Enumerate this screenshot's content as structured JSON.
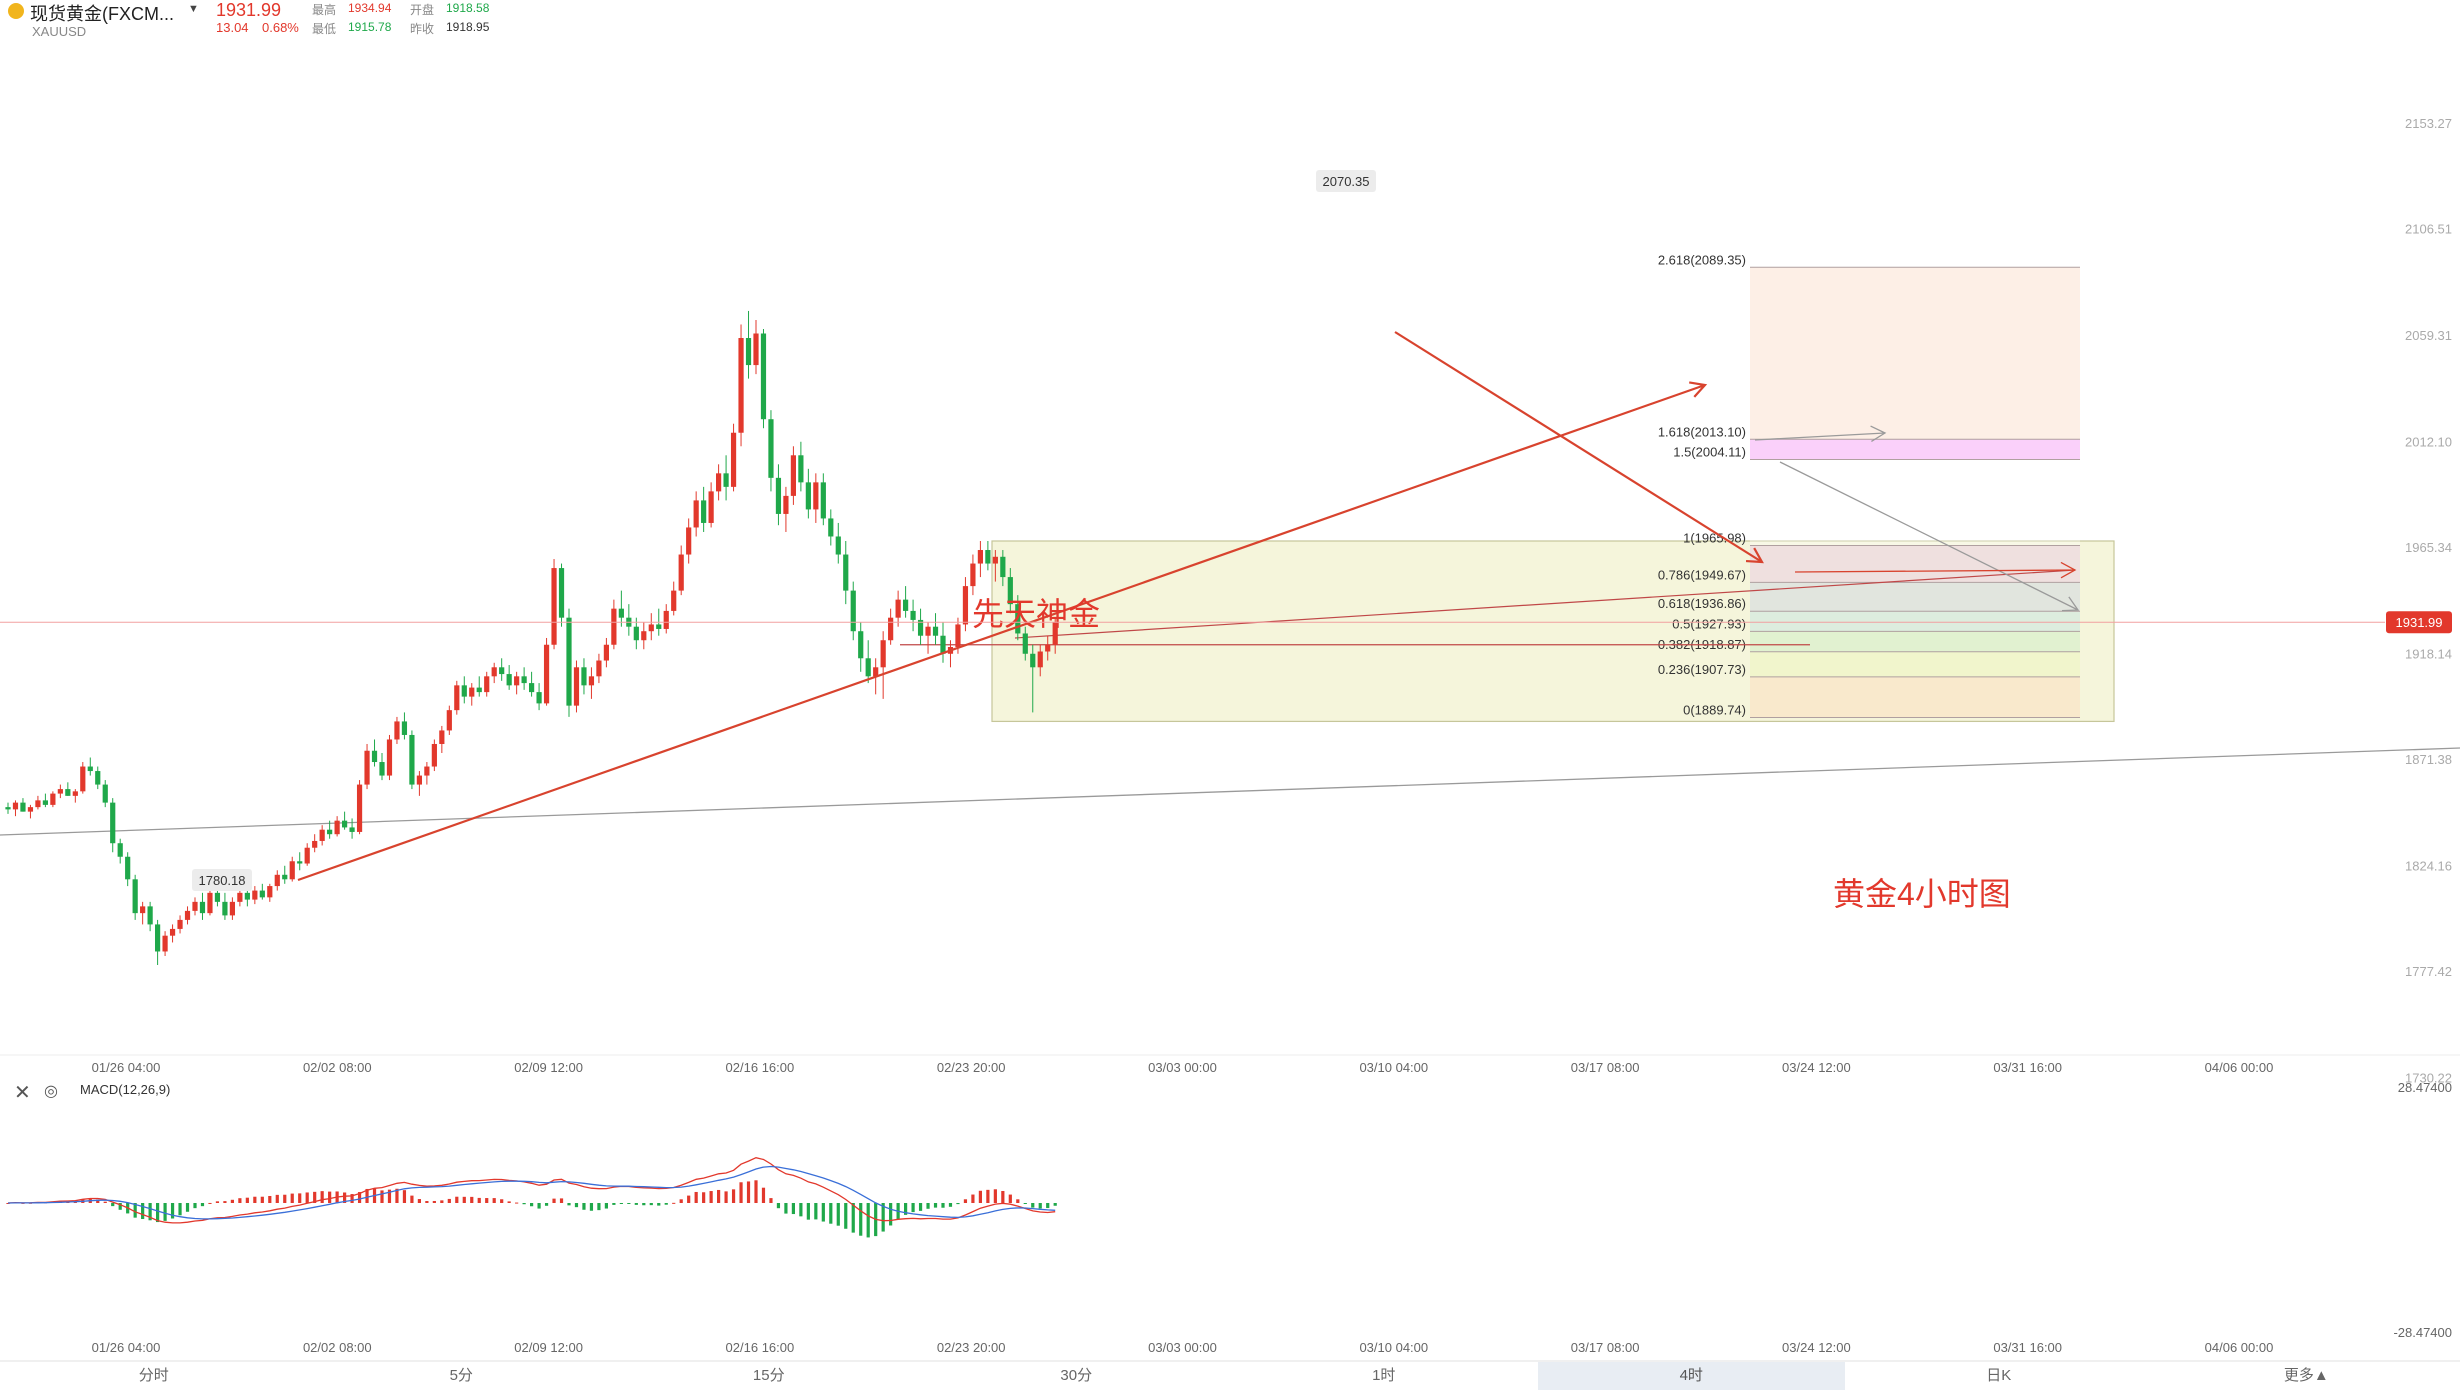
{
  "header": {
    "symbol_name": "现货黄金(FXCM...",
    "symbol_code": "XAUUSD",
    "last_price": "1931.99",
    "change": "13.04",
    "change_pct": "0.68%",
    "high_label": "最高",
    "high_value": "1934.94",
    "low_label": "最低",
    "low_value": "1915.78",
    "open_label": "开盘",
    "open_value": "1918.58",
    "prev_close_label": "昨收",
    "prev_close_value": "1918.95",
    "colors": {
      "up": "#e2382c",
      "down": "#1fa84a"
    }
  },
  "toolbar": {
    "tabs": [
      "分时",
      "5分",
      "15分",
      "30分",
      "1时",
      "4时",
      "日K",
      "更多▲"
    ],
    "active": "4时"
  },
  "indicator": {
    "label": "MACD(12,26,9)",
    "max_label": "28.47400",
    "min_label": "-28.47400"
  },
  "chart_data": {
    "type": "candlestick",
    "symbol": "XAUUSD",
    "timeframe": "4H",
    "y_axis_ticks": [
      2153.27,
      2106.51,
      2059.31,
      2012.1,
      1965.34,
      1918.14,
      1871.38,
      1824.16,
      1777.42,
      1730.22
    ],
    "y_axis_labels": [
      "2153.27",
      "2106.51",
      "2059.31",
      "2012.10",
      "1965.34",
      "1918.14",
      "1871.38",
      "1824.16",
      "1777.42",
      "1730.22"
    ],
    "x_axis_labels": [
      "01/26 04:00",
      "02/02 08:00",
      "02/09 12:00",
      "02/16 16:00",
      "02/23 20:00",
      "03/03 00:00",
      "03/10 04:00",
      "03/17 08:00",
      "03/24 12:00",
      "03/31 16:00",
      "04/06 00:00"
    ],
    "last_price": 1931.99,
    "swing_high": {
      "label": "2070.35",
      "value": 2070.35
    },
    "swing_low": {
      "label": "1780.18",
      "value": 1780.18
    },
    "fibonacci": [
      {
        "label": "2.618(2089.35)",
        "value": 2089.35
      },
      {
        "label": "1.618(2013.10)",
        "value": 2013.1
      },
      {
        "label": "1.5(2004.11)",
        "value": 2004.11
      },
      {
        "label": "1(1965.98)",
        "value": 1965.98
      },
      {
        "label": "0.786(1949.67)",
        "value": 1949.67
      },
      {
        "label": "0.618(1936.86)",
        "value": 1936.86
      },
      {
        "label": "0.5(1927.93)",
        "value": 1927.93
      },
      {
        "label": "0.382(1918.87)",
        "value": 1918.87
      },
      {
        "label": "0.236(1907.73)",
        "value": 1907.73
      },
      {
        "label": "0(1889.74)",
        "value": 1889.74
      }
    ],
    "annotations": [
      "先天神金",
      "黄金4小时图"
    ],
    "candles_ohlc": [
      [
        1850,
        1852,
        1847,
        1849
      ],
      [
        1849,
        1853,
        1846,
        1852
      ],
      [
        1852,
        1854,
        1848,
        1848
      ],
      [
        1848,
        1851,
        1845,
        1850
      ],
      [
        1850,
        1855,
        1849,
        1853
      ],
      [
        1853,
        1856,
        1850,
        1851
      ],
      [
        1851,
        1857,
        1850,
        1856
      ],
      [
        1856,
        1860,
        1854,
        1858
      ],
      [
        1858,
        1861,
        1855,
        1855
      ],
      [
        1855,
        1858,
        1852,
        1857
      ],
      [
        1857,
        1870,
        1856,
        1868
      ],
      [
        1868,
        1872,
        1864,
        1866
      ],
      [
        1866,
        1868,
        1858,
        1860
      ],
      [
        1860,
        1862,
        1850,
        1852
      ],
      [
        1852,
        1854,
        1830,
        1834
      ],
      [
        1834,
        1836,
        1825,
        1828
      ],
      [
        1828,
        1830,
        1815,
        1818
      ],
      [
        1818,
        1820,
        1800,
        1803
      ],
      [
        1803,
        1808,
        1798,
        1806
      ],
      [
        1806,
        1808,
        1795,
        1798
      ],
      [
        1798,
        1800,
        1780,
        1786
      ],
      [
        1786,
        1795,
        1784,
        1793
      ],
      [
        1793,
        1798,
        1790,
        1796
      ],
      [
        1796,
        1802,
        1794,
        1800
      ],
      [
        1800,
        1806,
        1798,
        1804
      ],
      [
        1804,
        1810,
        1802,
        1808
      ],
      [
        1808,
        1812,
        1800,
        1803
      ],
      [
        1803,
        1813,
        1802,
        1812
      ],
      [
        1812,
        1816,
        1806,
        1808
      ],
      [
        1808,
        1812,
        1800,
        1802
      ],
      [
        1802,
        1810,
        1800,
        1808
      ],
      [
        1808,
        1814,
        1806,
        1812
      ],
      [
        1812,
        1814,
        1806,
        1809
      ],
      [
        1809,
        1815,
        1807,
        1813
      ],
      [
        1813,
        1816,
        1809,
        1810
      ],
      [
        1810,
        1816,
        1808,
        1815
      ],
      [
        1815,
        1822,
        1813,
        1820
      ],
      [
        1820,
        1824,
        1816,
        1818
      ],
      [
        1818,
        1828,
        1817,
        1826
      ],
      [
        1826,
        1830,
        1822,
        1825
      ],
      [
        1825,
        1834,
        1824,
        1832
      ],
      [
        1832,
        1838,
        1830,
        1835
      ],
      [
        1835,
        1842,
        1833,
        1840
      ],
      [
        1840,
        1844,
        1836,
        1838
      ],
      [
        1838,
        1846,
        1837,
        1844
      ],
      [
        1844,
        1848,
        1840,
        1841
      ],
      [
        1841,
        1845,
        1836,
        1839
      ],
      [
        1839,
        1862,
        1838,
        1860
      ],
      [
        1860,
        1878,
        1858,
        1875
      ],
      [
        1875,
        1880,
        1868,
        1870
      ],
      [
        1870,
        1874,
        1862,
        1864
      ],
      [
        1864,
        1882,
        1862,
        1880
      ],
      [
        1880,
        1890,
        1878,
        1888
      ],
      [
        1888,
        1892,
        1880,
        1882
      ],
      [
        1882,
        1884,
        1858,
        1860
      ],
      [
        1860,
        1866,
        1855,
        1864
      ],
      [
        1864,
        1870,
        1860,
        1868
      ],
      [
        1868,
        1880,
        1866,
        1878
      ],
      [
        1878,
        1886,
        1874,
        1884
      ],
      [
        1884,
        1895,
        1882,
        1893
      ],
      [
        1893,
        1906,
        1891,
        1904
      ],
      [
        1904,
        1908,
        1896,
        1899
      ],
      [
        1899,
        1905,
        1895,
        1903
      ],
      [
        1903,
        1908,
        1899,
        1901
      ],
      [
        1901,
        1910,
        1899,
        1908
      ],
      [
        1908,
        1914,
        1905,
        1912
      ],
      [
        1912,
        1916,
        1906,
        1909
      ],
      [
        1909,
        1913,
        1902,
        1904
      ],
      [
        1904,
        1910,
        1900,
        1908
      ],
      [
        1908,
        1912,
        1902,
        1905
      ],
      [
        1905,
        1910,
        1899,
        1901
      ],
      [
        1901,
        1905,
        1893,
        1896
      ],
      [
        1896,
        1925,
        1895,
        1922
      ],
      [
        1922,
        1960,
        1920,
        1956
      ],
      [
        1956,
        1958,
        1930,
        1934
      ],
      [
        1934,
        1938,
        1890,
        1895
      ],
      [
        1895,
        1915,
        1892,
        1912
      ],
      [
        1912,
        1916,
        1900,
        1904
      ],
      [
        1904,
        1912,
        1898,
        1908
      ],
      [
        1908,
        1918,
        1905,
        1915
      ],
      [
        1915,
        1925,
        1912,
        1922
      ],
      [
        1922,
        1942,
        1920,
        1938
      ],
      [
        1938,
        1946,
        1930,
        1934
      ],
      [
        1934,
        1940,
        1926,
        1930
      ],
      [
        1930,
        1934,
        1920,
        1924
      ],
      [
        1924,
        1932,
        1920,
        1928
      ],
      [
        1928,
        1936,
        1924,
        1931
      ],
      [
        1931,
        1938,
        1926,
        1929
      ],
      [
        1929,
        1940,
        1927,
        1937
      ],
      [
        1937,
        1950,
        1935,
        1946
      ],
      [
        1946,
        1966,
        1944,
        1962
      ],
      [
        1962,
        1978,
        1958,
        1974
      ],
      [
        1974,
        1990,
        1970,
        1986
      ],
      [
        1986,
        1992,
        1972,
        1976
      ],
      [
        1976,
        1994,
        1974,
        1990
      ],
      [
        1990,
        2002,
        1986,
        1998
      ],
      [
        1998,
        2006,
        1986,
        1992
      ],
      [
        1992,
        2020,
        1990,
        2016
      ],
      [
        2016,
        2064,
        2010,
        2058
      ],
      [
        2058,
        2070,
        2040,
        2046
      ],
      [
        2046,
        2066,
        2042,
        2060
      ],
      [
        2060,
        2062,
        2018,
        2022
      ],
      [
        2022,
        2026,
        1990,
        1996
      ],
      [
        1996,
        2002,
        1975,
        1980
      ],
      [
        1980,
        1992,
        1972,
        1988
      ],
      [
        1988,
        2010,
        1984,
        2006
      ],
      [
        2006,
        2012,
        1990,
        1994
      ],
      [
        1994,
        2000,
        1978,
        1982
      ],
      [
        1982,
        1998,
        1976,
        1994
      ],
      [
        1994,
        1998,
        1975,
        1978
      ],
      [
        1978,
        1982,
        1966,
        1970
      ],
      [
        1970,
        1976,
        1958,
        1962
      ],
      [
        1962,
        1968,
        1940,
        1946
      ],
      [
        1946,
        1950,
        1924,
        1928
      ],
      [
        1928,
        1932,
        1910,
        1916
      ],
      [
        1916,
        1924,
        1905,
        1908
      ],
      [
        1908,
        1916,
        1900,
        1912
      ],
      [
        1912,
        1928,
        1898,
        1924
      ],
      [
        1924,
        1938,
        1922,
        1934
      ],
      [
        1934,
        1946,
        1930,
        1942
      ],
      [
        1942,
        1948,
        1934,
        1937
      ],
      [
        1937,
        1942,
        1928,
        1933
      ],
      [
        1933,
        1938,
        1922,
        1926
      ],
      [
        1926,
        1932,
        1918,
        1930
      ],
      [
        1930,
        1936,
        1922,
        1926
      ],
      [
        1926,
        1932,
        1914,
        1918
      ],
      [
        1918,
        1924,
        1912,
        1921
      ],
      [
        1921,
        1934,
        1918,
        1931
      ],
      [
        1931,
        1952,
        1928,
        1948
      ],
      [
        1948,
        1962,
        1944,
        1958
      ],
      [
        1958,
        1968,
        1952,
        1964
      ],
      [
        1964,
        1968,
        1955,
        1958
      ],
      [
        1958,
        1964,
        1950,
        1961
      ],
      [
        1961,
        1964,
        1948,
        1952
      ],
      [
        1952,
        1956,
        1936,
        1940
      ],
      [
        1940,
        1944,
        1924,
        1927
      ],
      [
        1927,
        1930,
        1915,
        1918
      ],
      [
        1918,
        1922,
        1892,
        1912
      ],
      [
        1912,
        1922,
        1908,
        1919
      ],
      [
        1919,
        1926,
        1915,
        1922
      ],
      [
        1922,
        1934,
        1918,
        1932
      ]
    ]
  }
}
